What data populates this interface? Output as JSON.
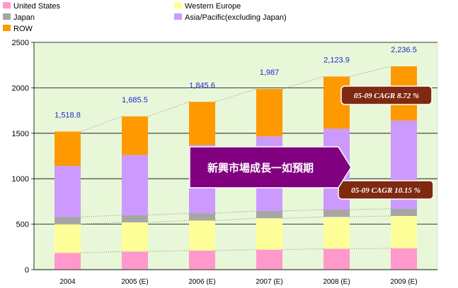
{
  "chart_data": {
    "type": "bar",
    "stacked": true,
    "categories": [
      "2004",
      "2005(E)",
      "2006(E)",
      "2007(E)",
      "2008(E)",
      "2009(E)"
    ],
    "category_labels": [
      "2004",
      "2005 (E)",
      "2006 (E)",
      "2007 (E)",
      "2008 (E)",
      "2009 (E)"
    ],
    "series": [
      {
        "name": "United States",
        "color": "#ff99cc",
        "values": [
          185,
          200,
          210,
          220,
          230,
          235
        ]
      },
      {
        "name": "Western Europe",
        "color": "#ffff99",
        "values": [
          315,
          320,
          330,
          345,
          350,
          355
        ]
      },
      {
        "name": "Japan",
        "color": "#a6a6a6",
        "values": [
          80,
          80,
          80,
          80,
          80,
          80
        ]
      },
      {
        "name": "Asia/Pacific(excluding Japan)",
        "color": "#cc99ff",
        "values": [
          560,
          660,
          750,
          820,
          890,
          970
        ]
      },
      {
        "name": "ROW",
        "color": "#ff9900",
        "values": [
          378.8,
          425.5,
          475.6,
          522,
          573.9,
          596.5
        ]
      }
    ],
    "totals": [
      "1,518.8",
      "1,685.5",
      "1,845.6",
      "1,987",
      "2,123.9",
      "2,236.5"
    ],
    "ylim": [
      0,
      2500
    ],
    "yticks": [
      0,
      500,
      1000,
      1500,
      2000,
      2500
    ],
    "grid": true,
    "legend_position": "top",
    "background": "#e8f7d8"
  },
  "annotations": {
    "cagr_top": "05-09 CAGR  8.72 %",
    "cagr_bottom": "05-09 CAGR  10.15 %",
    "arrow_text": "新興市場成長一如預期",
    "cagr_color": "#7f2a10",
    "arrow_color": "#800080"
  }
}
